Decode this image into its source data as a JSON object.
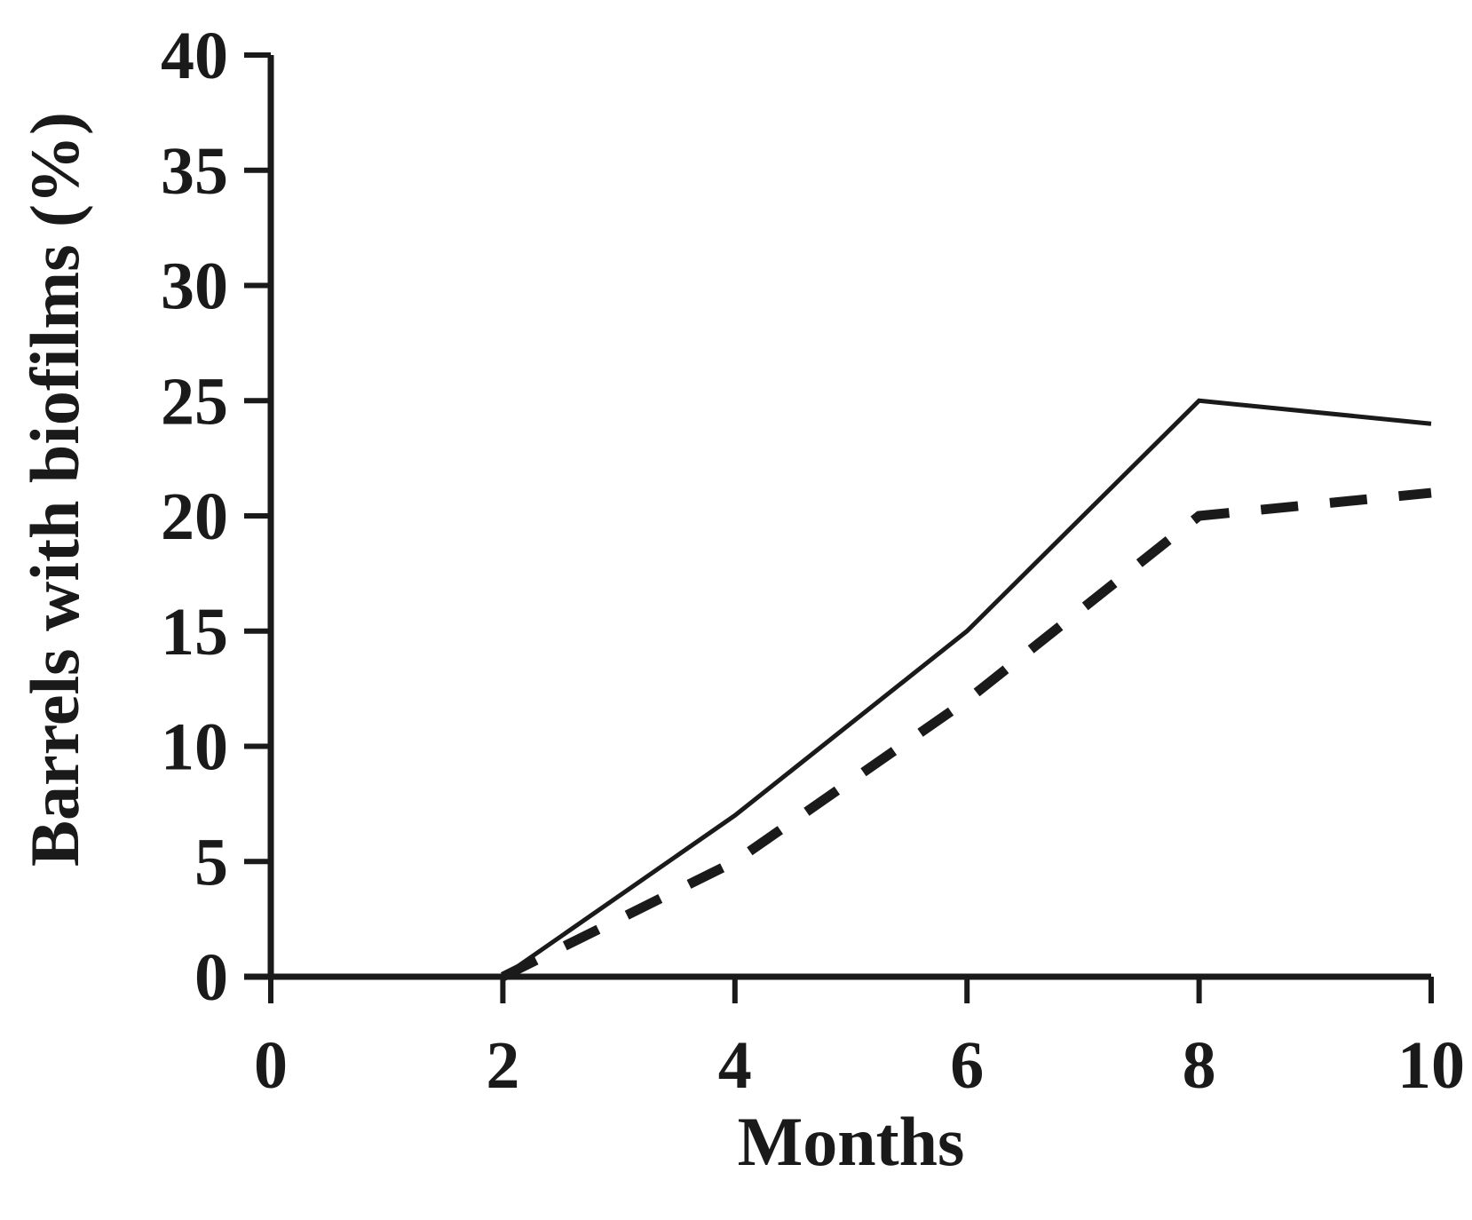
{
  "chart_data": {
    "type": "line",
    "title": "",
    "xlabel": "Months",
    "ylabel": "Barrels with biofilms (%)",
    "xlim": [
      0,
      10
    ],
    "ylim": [
      0,
      40
    ],
    "x_ticks": [
      0,
      2,
      4,
      6,
      8,
      10
    ],
    "y_ticks": [
      0,
      5,
      10,
      15,
      20,
      25,
      30,
      35,
      40
    ],
    "grid": false,
    "legend": "none",
    "series": [
      {
        "line_style": "solid",
        "color": "#1a1a1a",
        "x": [
          2,
          4,
          6,
          8,
          10
        ],
        "y": [
          0,
          7,
          15,
          25,
          24
        ]
      },
      {
        "line_style": "dashed",
        "color": "#1a1a1a",
        "x": [
          2,
          4,
          6,
          8,
          10
        ],
        "y": [
          0,
          5,
          12,
          20,
          21
        ]
      }
    ]
  }
}
